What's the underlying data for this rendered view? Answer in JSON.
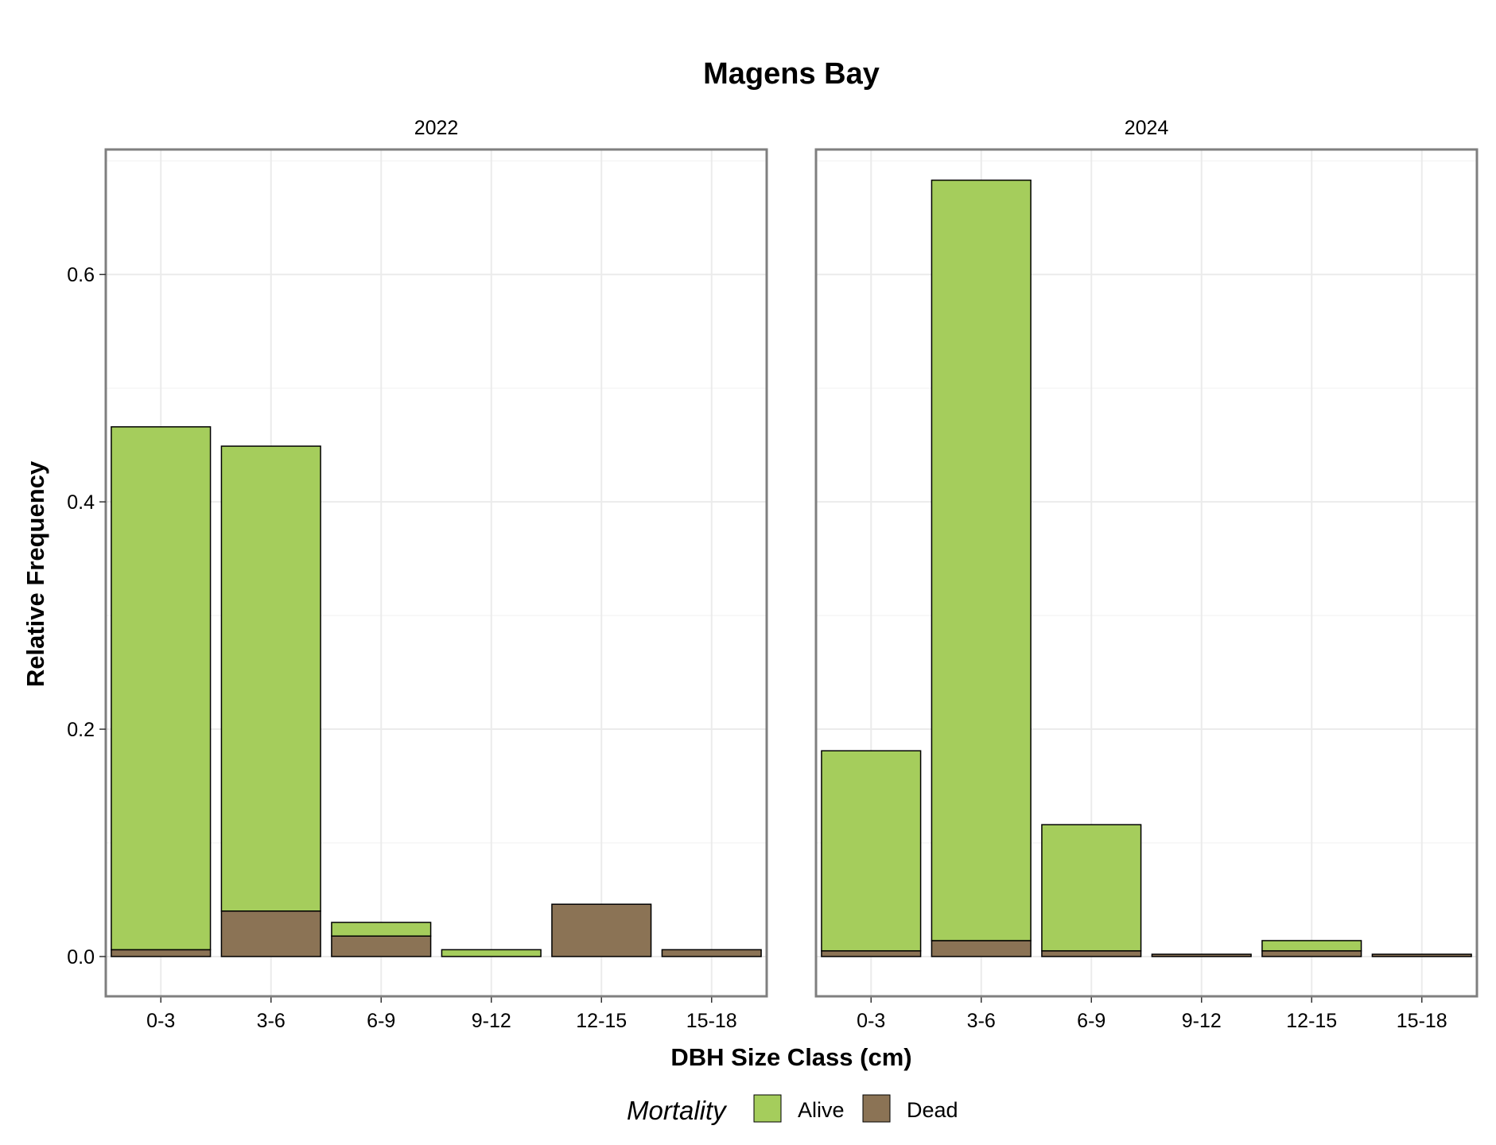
{
  "chart_data": {
    "type": "bar",
    "stacked": true,
    "title": "Magens Bay",
    "xlabel": "DBH Size Class (cm)",
    "ylabel": "Relative Frequency",
    "categories": [
      "0-3",
      "3-6",
      "6-9",
      "9-12",
      "12-15",
      "15-18"
    ],
    "y_ticks": [
      "0.0",
      "0.2",
      "0.4",
      "0.6"
    ],
    "ylim": [
      -0.035,
      0.71
    ],
    "grid": true,
    "legend": {
      "title": "Mortality",
      "position": "bottom",
      "entries": [
        {
          "name": "Alive",
          "color": "#a5cd5c"
        },
        {
          "name": "Dead",
          "color": "#8b7355"
        }
      ]
    },
    "panels": [
      {
        "label": "2022",
        "series": [
          {
            "name": "Dead",
            "values": [
              0.006,
              0.04,
              0.018,
              0.0,
              0.046,
              0.006
            ]
          },
          {
            "name": "Alive",
            "values": [
              0.46,
              0.409,
              0.012,
              0.006,
              0.0,
              0.0
            ]
          }
        ]
      },
      {
        "label": "2024",
        "series": [
          {
            "name": "Dead",
            "values": [
              0.005,
              0.014,
              0.005,
              0.002,
              0.005,
              0.002
            ]
          },
          {
            "name": "Alive",
            "values": [
              0.176,
              0.669,
              0.111,
              0.0,
              0.009,
              0.0
            ]
          }
        ]
      }
    ]
  }
}
